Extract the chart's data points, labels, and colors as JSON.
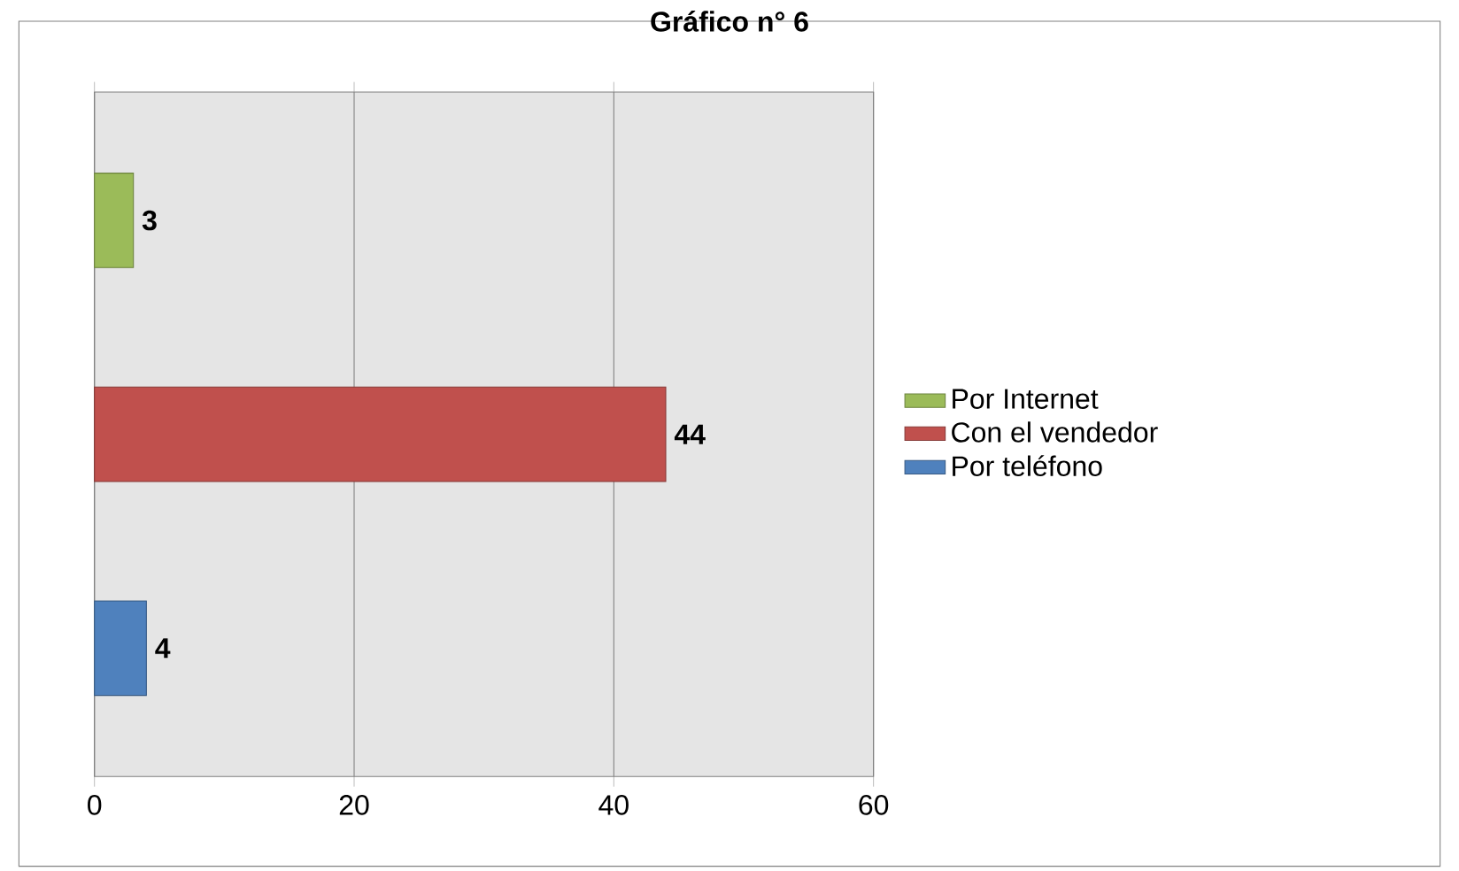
{
  "chart_data": {
    "type": "bar",
    "orientation": "horizontal",
    "title": "Gráfico n° 6",
    "categories": [
      null
    ],
    "series": [
      {
        "name": "Por Internet",
        "color": "#9bbb59",
        "values": [
          3
        ]
      },
      {
        "name": "Con el vendedor",
        "color": "#c0504d",
        "values": [
          44
        ]
      },
      {
        "name": "Por teléfono",
        "color": "#4f81bd",
        "values": [
          4
        ]
      }
    ],
    "xlim": [
      0,
      60
    ],
    "xticks": [
      0,
      20,
      40,
      60
    ],
    "grid": "x",
    "legend": "right",
    "data_labels": true,
    "tick_labels": "x"
  }
}
